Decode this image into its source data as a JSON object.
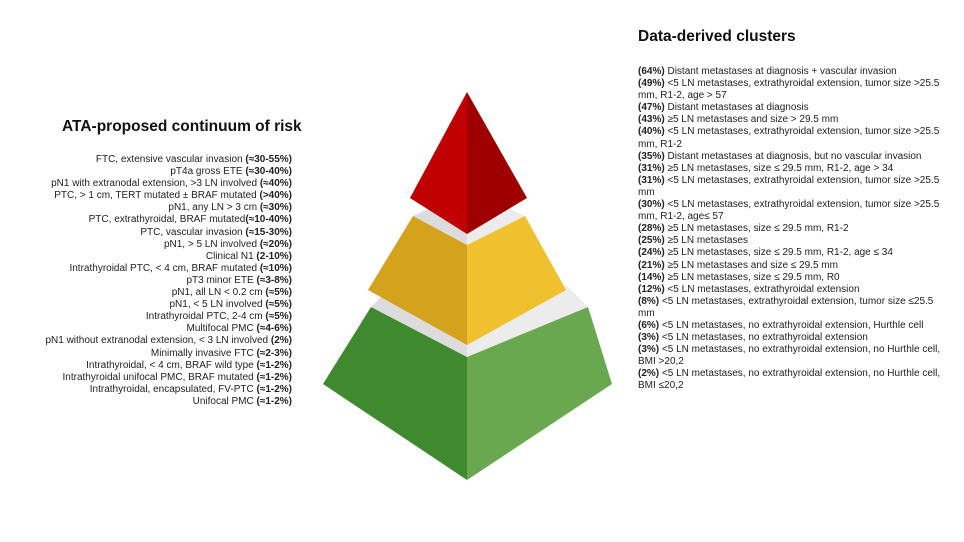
{
  "left_title": "ATA-proposed continuum of risk",
  "right_title": "Data-derived clusters",
  "ata_items": [
    {
      "text": "FTC, extensive vascular invasion ",
      "pct": "(≈30-55%)"
    },
    {
      "text": "pT4a gross ETE ",
      "pct": "(≈30-40%)"
    },
    {
      "text": "pN1 with extranodal extension, >3 LN involved ",
      "pct": "(≈40%)"
    },
    {
      "text": "PTC, > 1 cm, TERT mutated ± BRAF mutated ",
      "pct": "(>40%)"
    },
    {
      "text": "pN1, any LN > 3 cm ",
      "pct": "(≈30%)"
    },
    {
      "text": "PTC, extrathyroidal, BRAF mutated",
      "pct": "(≈10-40%)"
    },
    {
      "text": "PTC, vascular invasion ",
      "pct": "(≈15-30%)"
    },
    {
      "text": "pN1, > 5 LN involved ",
      "pct": "(≈20%)"
    },
    {
      "text": "Clinical N1 ",
      "pct": "(2-10%)"
    },
    {
      "text": "Intrathyroidal PTC, < 4 cm, BRAF mutated ",
      "pct": "(≈10%)"
    },
    {
      "text": "pT3 minor ETE ",
      "pct": "(≈3-8%)"
    },
    {
      "text": "pN1, all LN < 0.2 cm ",
      "pct": "(≈5%)"
    },
    {
      "text": "pN1, < 5 LN involved ",
      "pct": "(≈5%)"
    },
    {
      "text": "Intrathyroidal PTC, 2-4 cm ",
      "pct": "(≈5%)"
    },
    {
      "text": "Multifocal PMC ",
      "pct": "(≈4-6%)"
    },
    {
      "text": "pN1 without extranodal extension, < 3 LN involved ",
      "pct": "(2%)"
    },
    {
      "text": "Minimally invasive FTC ",
      "pct": "(≈2-3%)"
    },
    {
      "text": "Intrathyroidal, < 4 cm, BRAF wild type ",
      "pct": "(≈1-2%)"
    },
    {
      "text": "Intrathyroidal unifocal PMC, BRAF mutated ",
      "pct": "(≈1-2%)"
    },
    {
      "text": "Intrathyroidal, encapsulated, FV-PTC ",
      "pct": "(≈1-2%)"
    },
    {
      "text": "Unifocal PMC ",
      "pct": "(≈1-2%)"
    }
  ],
  "cluster_items": [
    {
      "pct": "(64%)",
      "text": " Distant metastases at diagnosis + vascular invasion"
    },
    {
      "pct": "(49%)",
      "text": " <5 LN metastases, extrathyroidal extension, tumor size >25.5 mm, R1-2, age > 57"
    },
    {
      "pct": "(47%)",
      "text": " Distant metastases at diagnosis"
    },
    {
      "pct": "(43%)",
      "text": " ≥5 LN metastases and size > 29.5 mm"
    },
    {
      "pct": "(40%)",
      "text": " <5 LN metastases, extrathyroidal extension, tumor size >25.5 mm, R1-2"
    },
    {
      "pct": "(35%)",
      "text": " Distant metastases at diagnosis, but no vascular invasion"
    },
    {
      "pct": "(31%)",
      "text": " ≥5 LN metastases, size ≤ 29.5 mm, R1-2, age > 34"
    },
    {
      "pct": "(31%)",
      "text": " <5 LN metastases, extrathyroidal extension, tumor size >25.5 mm"
    },
    {
      "pct": "(30%)",
      "text": " <5 LN metastases, extrathyroidal extension, tumor size >25.5 mm, R1-2, age≤ 57"
    },
    {
      "pct": "(28%)",
      "text": " ≥5 LN metastases, size ≤ 29.5 mm, R1-2"
    },
    {
      "pct": "(25%)",
      "text": " ≥5 LN metastases"
    },
    {
      "pct": "(24%)",
      "text": " ≥5 LN metastases, size ≤ 29.5 mm, R1-2, age ≤ 34"
    },
    {
      "pct": "(21%)",
      "text": " ≥5 LN metastases and size ≤ 29.5 mm"
    },
    {
      "pct": "(14%)",
      "text": " ≥5 LN metastases, size ≤ 29.5 mm, R0"
    },
    {
      "pct": "(12%)",
      "text": " <5 LN metastases, extrathyroidal extension"
    },
    {
      "pct": "(8%)",
      "text": " <5 LN metastases, extrathyroidal extension, tumor size ≤25.5 mm"
    },
    {
      "pct": "(6%)",
      "text": " <5 LN metastases, no extrathyroidal extension, Hurthle cell"
    },
    {
      "pct": "(3%)",
      "text": " <5 LN metastases, no extrathyroidal extension"
    },
    {
      "pct": "(3%)",
      "text": " <5 LN metastases, no extrathyroidal extension, no Hurthle cell, BMI >20,2"
    },
    {
      "pct": "(2%)",
      "text": " <5 LN metastases, no extrathyroidal extension, no Hurthle cell, BMI ≤20,2"
    }
  ],
  "tier_colors": {
    "high_left": "#c00000",
    "high_right": "#9e0000",
    "mid_left": "#d4a21c",
    "mid_right": "#efc12e",
    "low_left": "#3f8a2e",
    "low_right": "#69a84f",
    "gap_left": "#dcdcdc",
    "gap_right": "#ececec"
  }
}
